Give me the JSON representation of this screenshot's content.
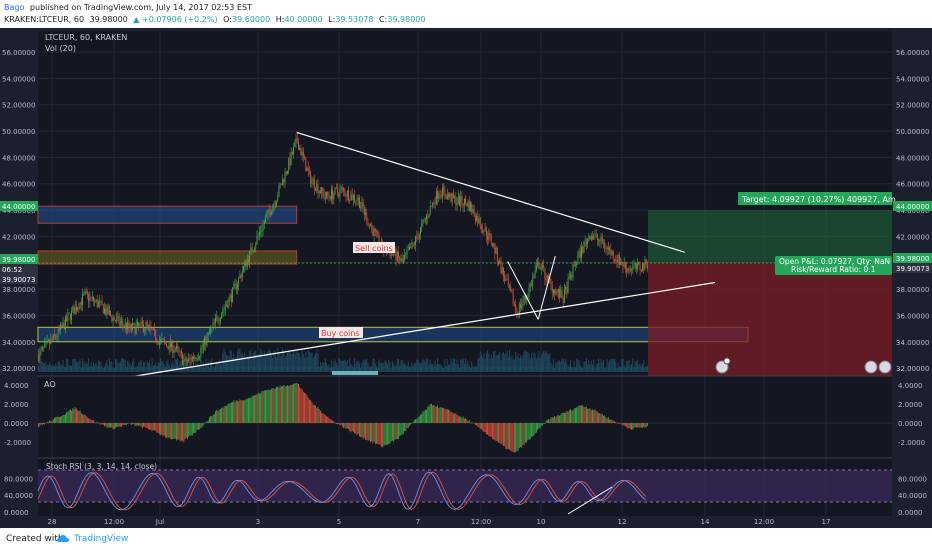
{
  "header": {
    "author": "Bago",
    "published": "published on TradingView.com, July 14, 2017 02:53 EST",
    "symbol_line": "KRAKEN:LTCEUR, 60",
    "last": "39.98000",
    "change": "▲ +0.07906 (+0.2%)",
    "ohlc": [
      {
        "key": "O:",
        "val": "39.60000"
      },
      {
        "key": "H:",
        "val": "40.00000"
      },
      {
        "key": "L:",
        "val": "39.53078"
      },
      {
        "key": "C:",
        "val": "39.98000"
      }
    ]
  },
  "chart_title": "LTCEUR, 60, KRAKEN",
  "vol_label": "Vol (20)",
  "price_ticks": [
    "56.00000",
    "54.00000",
    "52.00000",
    "50.00000",
    "48.00000",
    "46.00000",
    "44.00000",
    "42.00000",
    "40.00000",
    "38.00000",
    "36.00000",
    "34.00000",
    "32.00000"
  ],
  "ao_label": "AO",
  "ao_ticks": [
    "4.0000",
    "2.0000",
    "0.0000",
    "-2.0000"
  ],
  "stoch_label": "Stoch RSI (3, 3, 14, 14, close)",
  "stoch_ticks": [
    "80.0000",
    "40.0000",
    "0.0000"
  ],
  "x_ticks": [
    "28",
    "12:00",
    "Jul",
    "3",
    "5",
    "7",
    "12:00",
    "10",
    "12",
    "14",
    "12:00",
    "17"
  ],
  "right_tags": {
    "p1": "44.00000",
    "p2": "39.98000",
    "p3": "39.90073"
  },
  "left_tags": {
    "p1": "44.00000",
    "p2": "39.98000",
    "p2b": "06:52",
    "p3": "39.90073"
  },
  "annotations": {
    "sell": "Sell coins",
    "buy": "Buy coins",
    "target": "Target: 4.09927 (10.27%) 409927, Am",
    "pnl": "Open P&L: 0.07927, Qty: NaN",
    "rr": "Risk/Reward Ratio: 0.1"
  },
  "footer": {
    "created": "Created with",
    "brand": "TradingView"
  },
  "chart_data": {
    "type": "candlestick",
    "title": "LTCEUR, 60, KRAKEN",
    "y_range": [
      31.4,
      57.6
    ],
    "x_ticks": [
      "28",
      "12:00",
      "Jul",
      "3",
      "5",
      "7",
      "12:00",
      "10",
      "12",
      "14",
      "12:00",
      "17"
    ],
    "price_anchors": [
      [
        0,
        33.0
      ],
      [
        15,
        34.5
      ],
      [
        28,
        36.3
      ],
      [
        38,
        37.5
      ],
      [
        50,
        36.8
      ],
      [
        62,
        35.7
      ],
      [
        75,
        35.0
      ],
      [
        88,
        35.2
      ],
      [
        100,
        34.0
      ],
      [
        112,
        33.5
      ],
      [
        120,
        32.4
      ],
      [
        132,
        33.2
      ],
      [
        145,
        35.5
      ],
      [
        158,
        37.5
      ],
      [
        170,
        40.0
      ],
      [
        182,
        42.5
      ],
      [
        195,
        45.0
      ],
      [
        205,
        47.5
      ],
      [
        212,
        49.3
      ],
      [
        222,
        46.5
      ],
      [
        235,
        45.0
      ],
      [
        248,
        45.5
      ],
      [
        262,
        44.8
      ],
      [
        272,
        42.8
      ],
      [
        282,
        41.0
      ],
      [
        290,
        40.8
      ],
      [
        298,
        40.0
      ],
      [
        308,
        41.5
      ],
      [
        318,
        43.5
      ],
      [
        328,
        45.5
      ],
      [
        340,
        44.8
      ],
      [
        352,
        44.5
      ],
      [
        362,
        43.0
      ],
      [
        372,
        41.5
      ],
      [
        382,
        38.8
      ],
      [
        392,
        36.3
      ],
      [
        400,
        37.5
      ],
      [
        410,
        40.0
      ],
      [
        420,
        38.2
      ],
      [
        430,
        37.3
      ],
      [
        440,
        40.0
      ],
      [
        452,
        42.2
      ],
      [
        462,
        41.5
      ],
      [
        472,
        40.5
      ],
      [
        482,
        39.6
      ],
      [
        492,
        39.6
      ],
      [
        500,
        39.98
      ]
    ],
    "ao_anchors": [
      [
        0,
        -0.4
      ],
      [
        20,
        0.9
      ],
      [
        30,
        1.6
      ],
      [
        45,
        0.2
      ],
      [
        60,
        -0.6
      ],
      [
        75,
        -0.1
      ],
      [
        92,
        -0.7
      ],
      [
        105,
        -1.5
      ],
      [
        118,
        -2.0
      ],
      [
        132,
        -0.6
      ],
      [
        145,
        1.2
      ],
      [
        160,
        2.3
      ],
      [
        172,
        2.6
      ],
      [
        185,
        3.4
      ],
      [
        200,
        3.9
      ],
      [
        212,
        4.2
      ],
      [
        225,
        2.0
      ],
      [
        240,
        0.3
      ],
      [
        255,
        -0.8
      ],
      [
        270,
        -1.8
      ],
      [
        282,
        -2.5
      ],
      [
        295,
        -1.6
      ],
      [
        308,
        0.2
      ],
      [
        322,
        2.0
      ],
      [
        338,
        1.2
      ],
      [
        352,
        0.3
      ],
      [
        365,
        -0.9
      ],
      [
        378,
        -2.2
      ],
      [
        390,
        -3.2
      ],
      [
        402,
        -1.8
      ],
      [
        418,
        0.4
      ],
      [
        430,
        1.0
      ],
      [
        445,
        1.9
      ],
      [
        458,
        1.2
      ],
      [
        470,
        0.3
      ],
      [
        485,
        -0.6
      ],
      [
        500,
        -0.4
      ]
    ],
    "trendlines": {
      "upper": {
        "from": [
          212,
          49.9
        ],
        "to": [
          530,
          40.8
        ]
      },
      "lower": {
        "from": [
          80,
          31.4
        ],
        "to": [
          555,
          38.5
        ]
      },
      "wedge_a": [
        [
          385,
          40.1
        ],
        [
          410,
          35.7
        ]
      ],
      "wedge_b": [
        [
          410,
          35.7
        ],
        [
          424,
          40.5
        ]
      ]
    },
    "zones": [
      {
        "name": "resistance-blue",
        "y": [
          43.0,
          44.3
        ],
        "x": [
          0,
          212
        ]
      },
      {
        "name": "sell-box",
        "y": [
          39.9,
          40.9
        ],
        "x": [
          0,
          212
        ]
      },
      {
        "name": "buy-box",
        "y": [
          34.0,
          35.1
        ],
        "x": [
          0,
          582
        ]
      }
    ],
    "position": {
      "entry": 39.98,
      "target": 44.0,
      "stop": 31.4
    }
  }
}
